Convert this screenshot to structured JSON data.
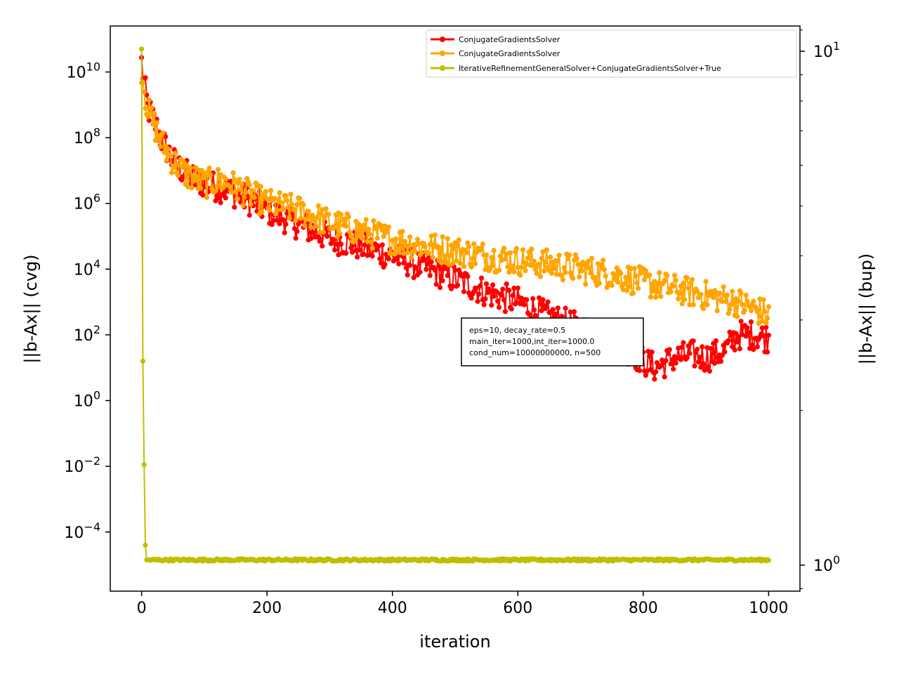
{
  "chart_data": {
    "type": "line",
    "xlabel": "iteration",
    "ylabel_left": "||b-Ax|| (cvg)",
    "ylabel_right": "||b-Ax|| (bup)",
    "x_ticks": [
      "0",
      "200",
      "400",
      "600",
      "800",
      "1000"
    ],
    "y_left_scale": "log",
    "y_left_ticks": [
      {
        "base": "10",
        "exp": "10"
      },
      {
        "base": "10",
        "exp": "8"
      },
      {
        "base": "10",
        "exp": "6"
      },
      {
        "base": "10",
        "exp": "4"
      },
      {
        "base": "10",
        "exp": "2"
      },
      {
        "base": "10",
        "exp": "0"
      },
      {
        "base": "10",
        "exp": "−2"
      },
      {
        "base": "10",
        "exp": "−4"
      }
    ],
    "y_right_scale": "log",
    "y_right_ticks": [
      {
        "base": "10",
        "exp": "1"
      },
      {
        "base": "10",
        "exp": "0"
      }
    ],
    "xlim": [
      -50,
      1050
    ],
    "ylim_left_log10": [
      -5.8,
      11.4
    ],
    "grid": false,
    "legend_position": "top-right",
    "annotation": [
      "eps=10, decay_rate=0.5",
      "main_iter=1000,int_iter=1000.0",
      "cond_num=10000000000, n=500"
    ],
    "series": [
      {
        "name": "ConjugateGradientsSolver",
        "color": "#ff0000",
        "marker": "circle",
        "x": [
          0,
          5,
          10,
          20,
          30,
          50,
          70,
          100,
          130,
          150,
          200,
          250,
          300,
          350,
          400,
          450,
          500,
          550,
          600,
          650,
          700,
          750,
          780,
          800,
          820,
          850,
          880,
          900,
          930,
          950,
          980,
          1000
        ],
        "log10_y": [
          10.3,
          9.5,
          8.9,
          8.5,
          8.0,
          7.3,
          6.9,
          6.6,
          6.45,
          6.3,
          5.8,
          5.35,
          4.95,
          4.7,
          4.4,
          4.05,
          3.7,
          3.3,
          3.0,
          2.55,
          2.2,
          1.8,
          1.5,
          1.2,
          1.0,
          1.3,
          1.4,
          1.3,
          1.5,
          2.0,
          2.0,
          1.9
        ]
      },
      {
        "name": "ConjugateGradientsSolver",
        "color": "#ffa500",
        "marker": "circle",
        "x": [
          0,
          5,
          10,
          20,
          30,
          50,
          70,
          100,
          130,
          150,
          200,
          250,
          300,
          350,
          400,
          450,
          500,
          550,
          600,
          650,
          700,
          750,
          800,
          850,
          900,
          950,
          1000
        ],
        "log10_y": [
          10.1,
          9.4,
          8.8,
          8.4,
          7.9,
          7.3,
          6.9,
          6.6,
          6.7,
          6.5,
          6.0,
          5.8,
          5.4,
          5.15,
          4.9,
          4.7,
          4.55,
          4.4,
          4.25,
          4.15,
          4.0,
          3.85,
          3.6,
          3.4,
          3.2,
          3.0,
          2.6
        ]
      },
      {
        "name": "IterativeRefinementGeneralSolver+ConjugateGradientsSolver+True",
        "color": "#bfbf00",
        "marker": "circle",
        "x": [
          0,
          1,
          2,
          3,
          4,
          5,
          6,
          7,
          8,
          10,
          20,
          50,
          100,
          200,
          300,
          400,
          500,
          600,
          700,
          800,
          900,
          1000
        ],
        "log10_y": [
          10.7,
          4.0,
          1.2,
          0.15,
          -1.95,
          -2.15,
          -4.4,
          -4.85,
          -4.85,
          -4.85,
          -4.85,
          -4.85,
          -4.85,
          -4.85,
          -4.85,
          -4.85,
          -4.85,
          -4.85,
          -4.85,
          -4.85,
          -4.85,
          -4.85
        ]
      }
    ]
  }
}
